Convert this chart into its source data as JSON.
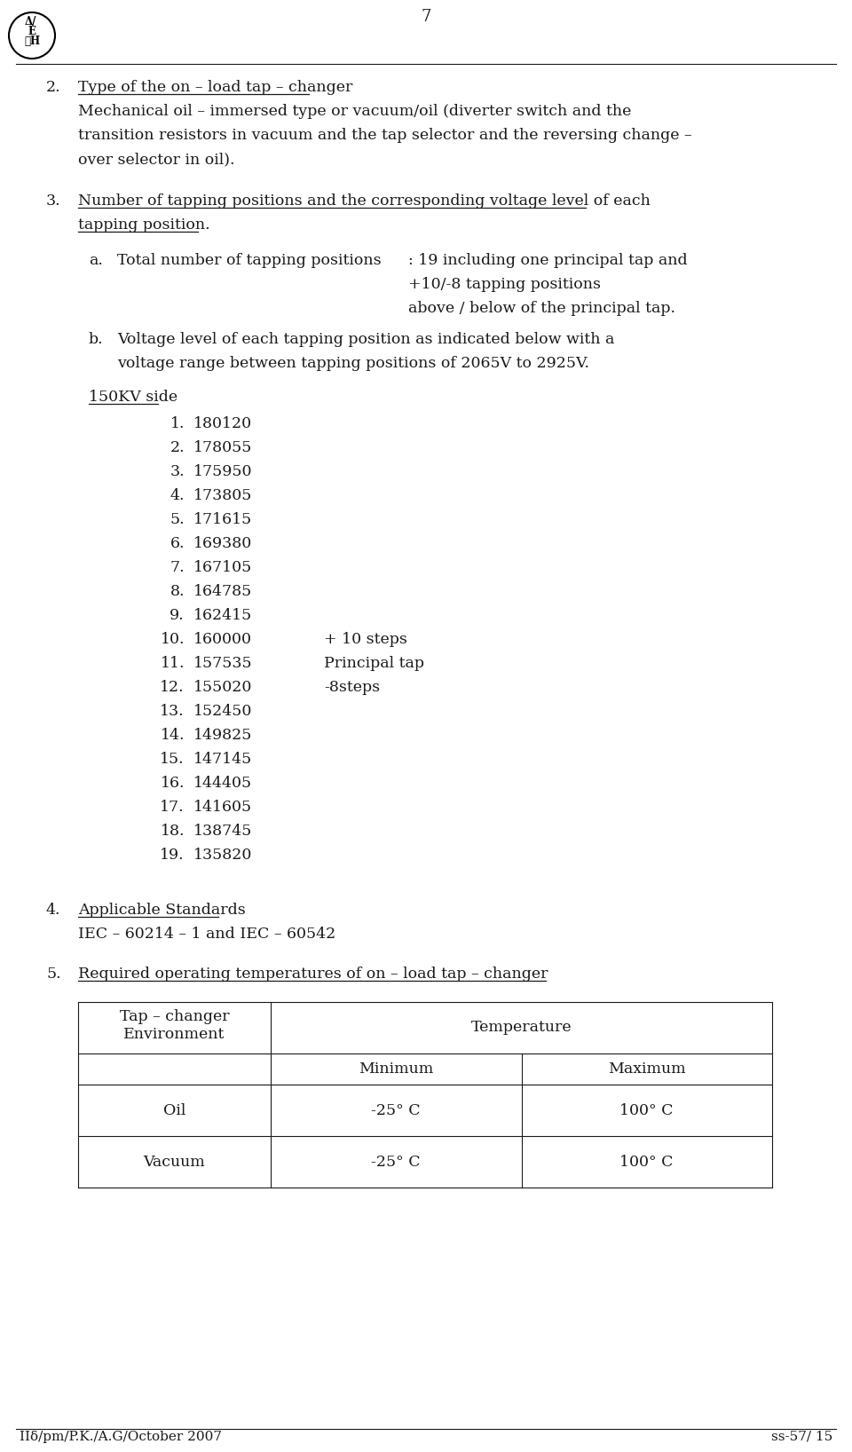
{
  "page_number": "7",
  "bg": "#ffffff",
  "tc": "#1a1a1a",
  "section2_title": "Type of the on – load tap – changer",
  "section2_body_lines": [
    "Mechanical oil – immersed type or vacuum/oil (diverter switch and the",
    "transition resistors in vacuum and the tap selector and the reversing change –",
    "over selector in oil)."
  ],
  "section3_title_line1": "Number of tapping positions and the corresponding voltage level of each",
  "section3_title_line2": "tapping position.",
  "section3a_text": "Total number of tapping positions",
  "section3a_val1": ": 19 including one principal tap and",
  "section3a_val2": "+10/-8 tapping positions",
  "section3a_val3": "above / below of the principal tap.",
  "section3b_line1": "Voltage level of each tapping position as indicated below with a",
  "section3b_line2": "voltage range between tapping positions of 2065V to 2925V.",
  "kv_side_label": "150KV side",
  "tapping_positions": [
    {
      "num": "1.",
      "value": "180120",
      "note": ""
    },
    {
      "num": "2.",
      "value": "178055",
      "note": ""
    },
    {
      "num": "3.",
      "value": "175950",
      "note": ""
    },
    {
      "num": "4.",
      "value": "173805",
      "note": ""
    },
    {
      "num": "5.",
      "value": "171615",
      "note": ""
    },
    {
      "num": "6.",
      "value": "169380",
      "note": ""
    },
    {
      "num": "7.",
      "value": "167105",
      "note": ""
    },
    {
      "num": "8.",
      "value": "164785",
      "note": ""
    },
    {
      "num": "9.",
      "value": "162415",
      "note": ""
    },
    {
      "num": "10.",
      "value": "160000",
      "note": "+ 10 steps"
    },
    {
      "num": "11.",
      "value": "157535",
      "note": "Principal tap"
    },
    {
      "num": "12.",
      "value": "155020",
      "note": "-8steps"
    },
    {
      "num": "13.",
      "value": "152450",
      "note": ""
    },
    {
      "num": "14.",
      "value": "149825",
      "note": ""
    },
    {
      "num": "15.",
      "value": "147145",
      "note": ""
    },
    {
      "num": "16.",
      "value": "144405",
      "note": ""
    },
    {
      "num": "17.",
      "value": "141605",
      "note": ""
    },
    {
      "num": "18.",
      "value": "138745",
      "note": ""
    },
    {
      "num": "19.",
      "value": "135820",
      "note": ""
    }
  ],
  "section4_title": "Applicable Standards",
  "section4_body": "IEC – 60214 – 1 and IEC – 60542",
  "section5_title": "Required operating temperatures of on – load tap – changer",
  "table_col1": "Tap – changer\nEnvironment",
  "table_col2": "Temperature",
  "table_col2a": "Minimum",
  "table_col2b": "Maximum",
  "table_row1_label": "Oil",
  "table_row1_min": "-25° C",
  "table_row1_max": "100° C",
  "table_row2_label": "Vacuum",
  "table_row2_min": "-25° C",
  "table_row2_max": "100° C",
  "footer_left": "IIδ/pm/P.K./A.G/October 2007",
  "footer_right": "ss-57/ 15",
  "font": "DejaVu Serif",
  "fs": 12.5,
  "lh": 27
}
